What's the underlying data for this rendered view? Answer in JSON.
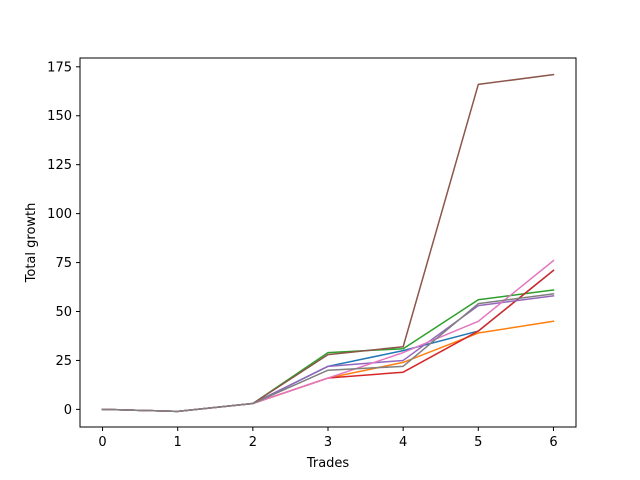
{
  "chart_data": {
    "type": "line",
    "title": "",
    "xlabel": "Trades",
    "ylabel": "Total growth",
    "xlim": [
      -0.3,
      6.3
    ],
    "ylim": [
      -9.0,
      179.5
    ],
    "grid": false,
    "legend": "none",
    "x": [
      0,
      1,
      2,
      3,
      4,
      5,
      6
    ],
    "xticks": [
      "0",
      "1",
      "2",
      "3",
      "4",
      "5",
      "6"
    ],
    "yticks": [
      0,
      25,
      50,
      75,
      100,
      125,
      150,
      175
    ],
    "ytick_labels": [
      "0",
      "25",
      "50",
      "75",
      "100",
      "125",
      "150",
      "175"
    ],
    "series": [
      {
        "color": "#1f77b4",
        "values": [
          0,
          -1,
          3,
          22,
          30,
          40,
          71
        ]
      },
      {
        "color": "#ff7f0e",
        "values": [
          0,
          -1,
          3,
          16,
          24,
          39,
          45
        ]
      },
      {
        "color": "#2ca02c",
        "values": [
          0,
          -1,
          3,
          29,
          31,
          56,
          61
        ]
      },
      {
        "color": "#d62728",
        "values": [
          0,
          -1,
          3,
          16,
          19,
          40,
          71
        ]
      },
      {
        "color": "#9467bd",
        "values": [
          0,
          -1,
          3,
          22,
          25,
          53,
          58
        ]
      },
      {
        "color": "#8c564b",
        "values": [
          0,
          -1,
          3,
          28,
          32,
          166,
          171
        ]
      },
      {
        "color": "#e377c2",
        "values": [
          0,
          -1,
          3,
          16,
          29,
          45,
          76
        ]
      },
      {
        "color": "#7f7f7f",
        "values": [
          0,
          -1,
          3,
          20,
          22,
          54,
          59
        ]
      }
    ]
  }
}
